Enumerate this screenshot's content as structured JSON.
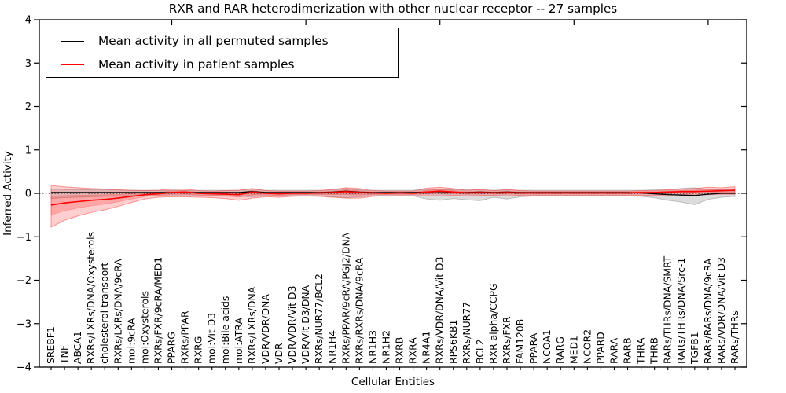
{
  "figure": {
    "title": "RXR and RAR heterodimerization with other nuclear receptor -- 27 samples",
    "xlabel": "Cellular Entities",
    "ylabel": "Inferred Activity",
    "legend": [
      {
        "label": "Mean activity in all permuted samples",
        "color": "#000000"
      },
      {
        "label": "Mean activity in patient samples",
        "color": "#ff0000"
      }
    ]
  },
  "chart_data": {
    "type": "line",
    "title": "RXR and RAR heterodimerization with other nuclear receptor -- 27 samples",
    "xlabel": "Cellular Entities",
    "ylabel": "Inferred Activity",
    "ylim": [
      -4,
      4
    ],
    "yticks": [
      -4,
      -3,
      -2,
      -1,
      0,
      1,
      2,
      3,
      4
    ],
    "grid": false,
    "zero_line": "dotted",
    "legend_position": "upper left",
    "x_major_tick_every": 10,
    "categories": [
      "SREBF1",
      "TNF",
      "ABCA1",
      "RXRs/LXRs/DNA/Oxysterols",
      "cholesterol transport",
      "RXRs/LXRs/DNA/9cRA",
      "mol:9cRA",
      "mol:Oxysterols",
      "RXRs/FXR/9cRA/MED1",
      "PPARG",
      "RXRs/PPAR",
      "RXRG",
      "mol:Vit D3",
      "mol:Bile acids",
      "mol:ATRA",
      "RXRs/LXRs/DNA",
      "VDR/VDR/DNA",
      "VDR",
      "VDR/VDR/Vit D3",
      "VDR/Vit D3/DNA",
      "RXRs/NUR77/BCL2",
      "NR1H4",
      "RXRs/PPAR/9cRA/PGJ2/DNA",
      "RXRs/RXRs/DNA/9cRA",
      "NR1H3",
      "NR1H2",
      "RXRB",
      "RXRA",
      "NR4A1",
      "RXRs/VDR/DNA/Vit D3",
      "RPS6KB1",
      "RXRs/NUR77",
      "BCL2",
      "RXR alpha/CCPG",
      "RXRs/FXR",
      "FAM120B",
      "PPARA",
      "NCOA1",
      "RARG",
      "MED1",
      "NCOR2",
      "PPARD",
      "RARA",
      "RARB",
      "THRA",
      "THRB",
      "RARs/THRs/DNA/SMRT",
      "RARs/THRs/DNA/Src-1",
      "TGFB1",
      "RARs/RARs/DNA/9cRA",
      "RARs/VDR/DNA/Vit D3",
      "RARs/THRs"
    ],
    "series": [
      {
        "name": "Mean activity in all permuted samples",
        "color": "#000000",
        "values": [
          0.02,
          0.02,
          0.02,
          0.02,
          0.02,
          0.02,
          0.02,
          0.02,
          0.02,
          0.02,
          0.02,
          0.02,
          0.02,
          0.02,
          0.02,
          0.04,
          0.02,
          0.02,
          0.02,
          0.02,
          0.02,
          0.03,
          0.05,
          0.03,
          0.02,
          0.02,
          0.02,
          0.02,
          0.03,
          0.04,
          0.02,
          0.02,
          0.03,
          0.02,
          0.03,
          0.02,
          0.02,
          0.02,
          0.02,
          0.02,
          0.02,
          0.02,
          0.02,
          0.02,
          0.01,
          -0.01,
          -0.03,
          -0.04,
          -0.05,
          -0.02,
          0.0,
          0.0
        ]
      },
      {
        "name": "Mean activity in patient samples",
        "color": "#ff0000",
        "values": [
          -0.27,
          -0.22,
          -0.19,
          -0.16,
          -0.14,
          -0.11,
          -0.07,
          -0.03,
          -0.01,
          0.02,
          0.03,
          0.0,
          -0.01,
          -0.02,
          -0.03,
          0.03,
          0.0,
          -0.01,
          0.0,
          0.0,
          0.01,
          0.02,
          0.04,
          0.02,
          0.01,
          0.0,
          0.01,
          0.0,
          0.03,
          0.05,
          0.03,
          0.01,
          0.02,
          0.01,
          0.02,
          0.01,
          0.01,
          0.01,
          0.01,
          0.01,
          0.01,
          0.01,
          0.01,
          0.01,
          0.02,
          0.02,
          0.03,
          0.04,
          0.04,
          0.05,
          0.06,
          0.07
        ]
      }
    ],
    "bands": [
      {
        "name": "permuted-samples-range",
        "series": "Mean activity in all permuted samples",
        "fill": "rgba(140,140,140,0.30)",
        "edge": "rgba(130,130,130,0.45)",
        "lower": [
          -0.12,
          -0.1,
          -0.09,
          -0.08,
          -0.07,
          -0.07,
          -0.06,
          -0.06,
          -0.06,
          -0.06,
          -0.06,
          -0.06,
          -0.06,
          -0.06,
          -0.07,
          -0.08,
          -0.06,
          -0.06,
          -0.06,
          -0.06,
          -0.06,
          -0.08,
          -0.1,
          -0.08,
          -0.06,
          -0.06,
          -0.06,
          -0.06,
          -0.13,
          -0.16,
          -0.12,
          -0.15,
          -0.17,
          -0.09,
          -0.13,
          -0.08,
          -0.06,
          -0.06,
          -0.06,
          -0.06,
          -0.06,
          -0.06,
          -0.06,
          -0.06,
          -0.07,
          -0.1,
          -0.16,
          -0.2,
          -0.26,
          -0.14,
          -0.09,
          -0.07
        ],
        "upper": [
          0.1,
          0.09,
          0.09,
          0.08,
          0.08,
          0.08,
          0.07,
          0.07,
          0.07,
          0.07,
          0.07,
          0.07,
          0.07,
          0.07,
          0.07,
          0.1,
          0.07,
          0.07,
          0.07,
          0.07,
          0.07,
          0.08,
          0.11,
          0.08,
          0.07,
          0.07,
          0.07,
          0.07,
          0.09,
          0.09,
          0.08,
          0.08,
          0.08,
          0.07,
          0.08,
          0.07,
          0.07,
          0.07,
          0.07,
          0.07,
          0.07,
          0.07,
          0.07,
          0.07,
          0.07,
          0.08,
          0.09,
          0.11,
          0.13,
          0.09,
          0.08,
          0.08
        ]
      },
      {
        "name": "patient-samples-range",
        "series": "Mean activity in patient samples",
        "fill": "rgba(255,30,30,0.22)",
        "edge": "rgba(255,60,60,0.50)",
        "inner_factor": 0.45,
        "lower": [
          -0.78,
          -0.62,
          -0.52,
          -0.44,
          -0.38,
          -0.3,
          -0.21,
          -0.13,
          -0.09,
          -0.08,
          -0.08,
          -0.09,
          -0.1,
          -0.12,
          -0.16,
          -0.11,
          -0.08,
          -0.09,
          -0.07,
          -0.06,
          -0.07,
          -0.09,
          -0.11,
          -0.11,
          -0.07,
          -0.06,
          -0.06,
          -0.06,
          -0.06,
          -0.06,
          -0.05,
          -0.06,
          -0.05,
          -0.05,
          -0.06,
          -0.05,
          -0.05,
          -0.05,
          -0.05,
          -0.05,
          -0.05,
          -0.05,
          -0.05,
          -0.05,
          -0.05,
          -0.04,
          -0.04,
          -0.03,
          -0.04,
          -0.03,
          -0.02,
          -0.02
        ],
        "upper": [
          0.18,
          0.15,
          0.13,
          0.11,
          0.1,
          0.08,
          0.07,
          0.06,
          0.07,
          0.1,
          0.1,
          0.06,
          0.05,
          0.06,
          0.07,
          0.11,
          0.06,
          0.05,
          0.05,
          0.05,
          0.06,
          0.09,
          0.13,
          0.11,
          0.06,
          0.05,
          0.05,
          0.05,
          0.12,
          0.14,
          0.11,
          0.07,
          0.09,
          0.06,
          0.09,
          0.06,
          0.05,
          0.05,
          0.05,
          0.05,
          0.05,
          0.05,
          0.05,
          0.05,
          0.06,
          0.06,
          0.08,
          0.1,
          0.11,
          0.14,
          0.13,
          0.15
        ]
      }
    ]
  }
}
